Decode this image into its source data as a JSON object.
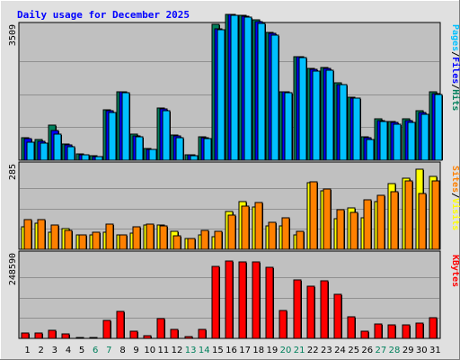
{
  "title": "Daily usage for December 2025",
  "colors": {
    "title": "#0000ff",
    "background": "#c0c0c0",
    "frame": "#e0e0e0",
    "gridline": "#909090",
    "hits": "#00805c",
    "files": "#0000ff",
    "pages": "#00c0ff",
    "visits": "#ffff00",
    "sites": "#ff8000",
    "kbytes": "#ff0000",
    "weekday_label": "#000000",
    "weekend_label": "#00805c",
    "separator": "#000000"
  },
  "legends": {
    "top": [
      {
        "key": "pages",
        "text": "Pages"
      },
      {
        "key": "separator",
        "text": "/"
      },
      {
        "key": "files",
        "text": "Files"
      },
      {
        "key": "separator",
        "text": "/"
      },
      {
        "key": "hits",
        "text": "Hits"
      }
    ],
    "middle": [
      {
        "key": "sites",
        "text": "Sites"
      },
      {
        "key": "separator",
        "text": "/"
      },
      {
        "key": "visits",
        "text": "Visits"
      }
    ],
    "bottom": [
      {
        "key": "kbytes",
        "text": "KBytes"
      }
    ]
  },
  "chart_data": {
    "type": "bar",
    "title": "Daily usage for December 2025",
    "categories": [
      "1",
      "2",
      "3",
      "4",
      "5",
      "6",
      "7",
      "8",
      "9",
      "10",
      "11",
      "12",
      "13",
      "14",
      "15",
      "16",
      "17",
      "18",
      "19",
      "20",
      "21",
      "22",
      "23",
      "24",
      "25",
      "26",
      "27",
      "28",
      "29",
      "30",
      "31"
    ],
    "weekend_days": [
      "6",
      "7",
      "13",
      "14",
      "20",
      "21",
      "27",
      "28"
    ],
    "panels": [
      {
        "id": "top",
        "max_label": "3509",
        "ymax": 3509,
        "series": [
          {
            "name": "Hits",
            "color_key": "hits",
            "values": [
              580,
              530,
              920,
              430,
              170,
              110,
              1320,
              1790,
              690,
              310,
              1360,
              660,
              150,
              620,
              3550,
              3820,
              3780,
              3670,
              3350,
              1780,
              2720,
              2400,
              2420,
              2030,
              1650,
              620,
              1080,
              1020,
              1080,
              1300,
              1780
            ]
          },
          {
            "name": "Files",
            "color_key": "files",
            "values": [
              560,
              500,
              780,
              390,
              150,
              95,
              1290,
              1790,
              640,
              290,
              1340,
              640,
              130,
              600,
              3450,
              3810,
              3760,
              3620,
              3310,
              1780,
              2700,
              2380,
              2400,
              1990,
              1630,
              580,
              1040,
              980,
              1040,
              1240,
              1750
            ]
          },
          {
            "name": "Pages",
            "color_key": "pages",
            "values": [
              470,
              440,
              690,
              350,
              140,
              90,
              1240,
              1770,
              620,
              280,
              1290,
              600,
              110,
              560,
              3420,
              3790,
              3740,
              3580,
              3280,
              1760,
              2680,
              2340,
              2350,
              1980,
              1620,
              540,
              1010,
              940,
              1000,
              1210,
              1720
            ]
          }
        ]
      },
      {
        "id": "middle",
        "max_label": "285",
        "ymax": 285,
        "series": [
          {
            "name": "Visits",
            "color_key": "visits",
            "values": [
              78,
              88,
              58,
              70,
              48,
              50,
              58,
              50,
              54,
              84,
              84,
              60,
              38,
              48,
              44,
              128,
              162,
              145,
              80,
              80,
              48,
              228,
              198,
              104,
              142,
              107,
              163,
              225,
              242,
              272,
              248
            ]
          },
          {
            "name": "Sites",
            "color_key": "sites",
            "values": [
              100,
              102,
              84,
              64,
              50,
              58,
              86,
              48,
              76,
              85,
              80,
              46,
              38,
              64,
              60,
              116,
              148,
              160,
              92,
              106,
              60,
              230,
              206,
              135,
              125,
              170,
              185,
              195,
              232,
              190,
              232
            ]
          }
        ]
      },
      {
        "id": "bottom",
        "max_label": "248590",
        "ymax": 248590,
        "series": [
          {
            "name": "KBytes",
            "color_key": "kbytes",
            "values": [
              16800,
              16400,
              24100,
              13800,
              3200,
              2800,
              53000,
              79000,
              22000,
              7500,
              59000,
              26000,
              4400,
              25400,
              214000,
              231000,
              228000,
              226000,
              212000,
              82000,
              174000,
              155000,
              172000,
              130000,
              64000,
              22000,
              42000,
              41000,
              39000,
              46000,
              61000
            ]
          }
        ]
      }
    ]
  }
}
